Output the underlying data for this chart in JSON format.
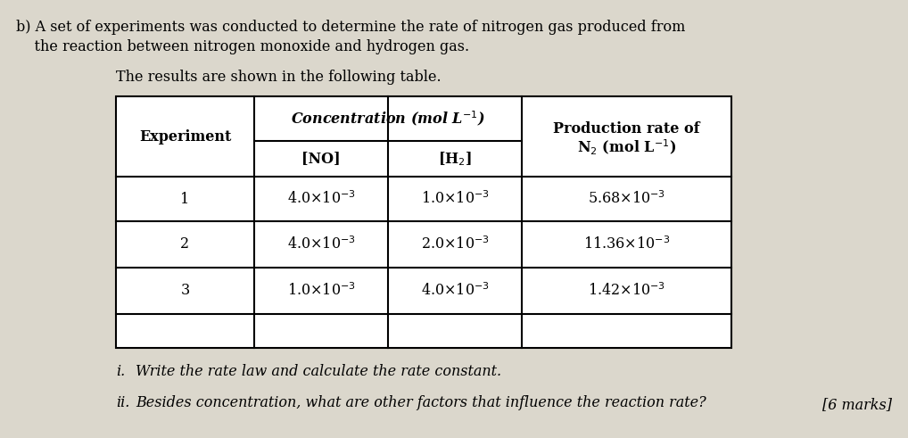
{
  "bg_color": "#dbd7cc",
  "title_line1": "b) A set of experiments was conducted to determine the rate of nitrogen gas produced from",
  "title_line2": "    the reaction between nitrogen monoxide and hydrogen gas.",
  "subtitle": "The results are shown in the following table.",
  "col_header_exp": "Experiment",
  "col_header_conc": "Concentration (mol L$^{-1}$)",
  "col_header_prod1": "Production rate of",
  "col_header_prod2": "N$_2$ (mol L$^{-1}$)",
  "sub_header_no": "[NO]",
  "sub_header_h2": "[H$_2$]",
  "rows": [
    [
      "1",
      "4.0×10$^{-3}$",
      "1.0×10$^{-3}$",
      "5.68×10$^{-3}$"
    ],
    [
      "2",
      "4.0×10$^{-3}$",
      "2.0×10$^{-3}$",
      "11.36×10$^{-3}$"
    ],
    [
      "3",
      "1.0×10$^{-3}$",
      "4.0×10$^{-3}$",
      "1.42×10$^{-3}$"
    ]
  ],
  "footer_i_label": "i.",
  "footer_i_text": "Write the rate law and calculate the rate constant.",
  "footer_ii_label": "ii.",
  "footer_ii_text": "Besides concentration, what are other factors that influence the reaction rate?",
  "footer_marks": "[6 marks]",
  "font_size": 11.5
}
